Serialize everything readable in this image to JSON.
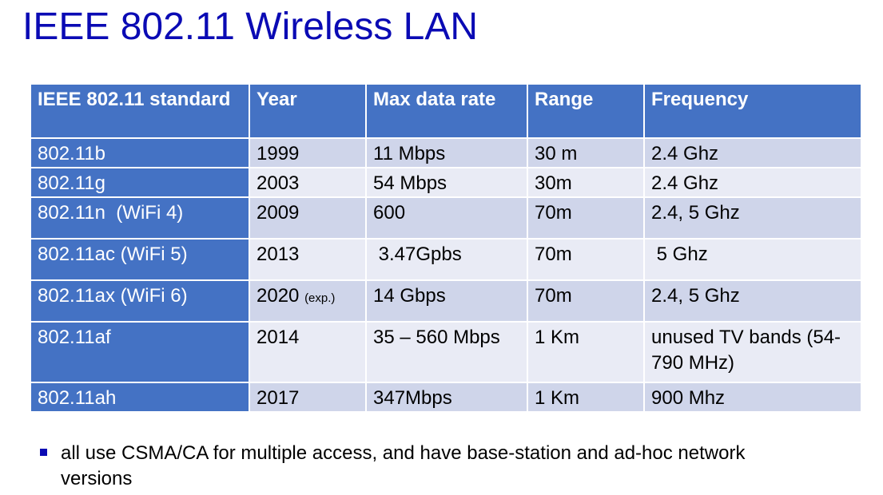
{
  "title": "IEEE 802.11 Wireless LAN",
  "colors": {
    "title": "#0a0ab4",
    "header_bg": "#4472c4",
    "row_even": "#cfd5ea",
    "row_odd": "#e9ebf5",
    "bullet": "#0a0ab4"
  },
  "table": {
    "headers": [
      "IEEE 802.11 standard",
      "Year",
      "Max data rate",
      "Range",
      "Frequency"
    ],
    "rows": [
      {
        "standard": "802.11b",
        "year": "1999",
        "year_note": "",
        "rate": "11 Mbps",
        "range": "30 m",
        "frequency": "2.4 Ghz"
      },
      {
        "standard": "802.11g",
        "year": "2003",
        "year_note": "",
        "rate": "54 Mbps",
        "range": "30m",
        "frequency": "2.4 Ghz"
      },
      {
        "standard": "802.11n  (WiFi 4)",
        "year": "2009",
        "year_note": "",
        "rate": "600",
        "range": "70m",
        "frequency": "2.4, 5 Ghz"
      },
      {
        "standard": "802.11ac (WiFi 5)",
        "year": "2013",
        "year_note": "",
        "rate": " 3.47Gpbs",
        "range": "70m",
        "frequency": " 5 Ghz"
      },
      {
        "standard": "802.11ax (WiFi 6)",
        "year": "2020",
        "year_note": "(exp.)",
        "rate": "14 Gbps",
        "range": "70m",
        "frequency": "2.4, 5 Ghz"
      },
      {
        "standard": "802.11af",
        "year": "2014",
        "year_note": "",
        "rate": "35 – 560 Mbps",
        "range": "1 Km",
        "frequency": "unused TV bands (54-790 MHz)"
      },
      {
        "standard": "802.11ah",
        "year": "2017",
        "year_note": "",
        "rate": "347Mbps",
        "range": "1 Km",
        "frequency": "900 Mhz"
      }
    ]
  },
  "bullet": {
    "icon": "square-bullet-icon",
    "text": "all use CSMA/CA for multiple access, and have base-station and ad-hoc network versions"
  }
}
